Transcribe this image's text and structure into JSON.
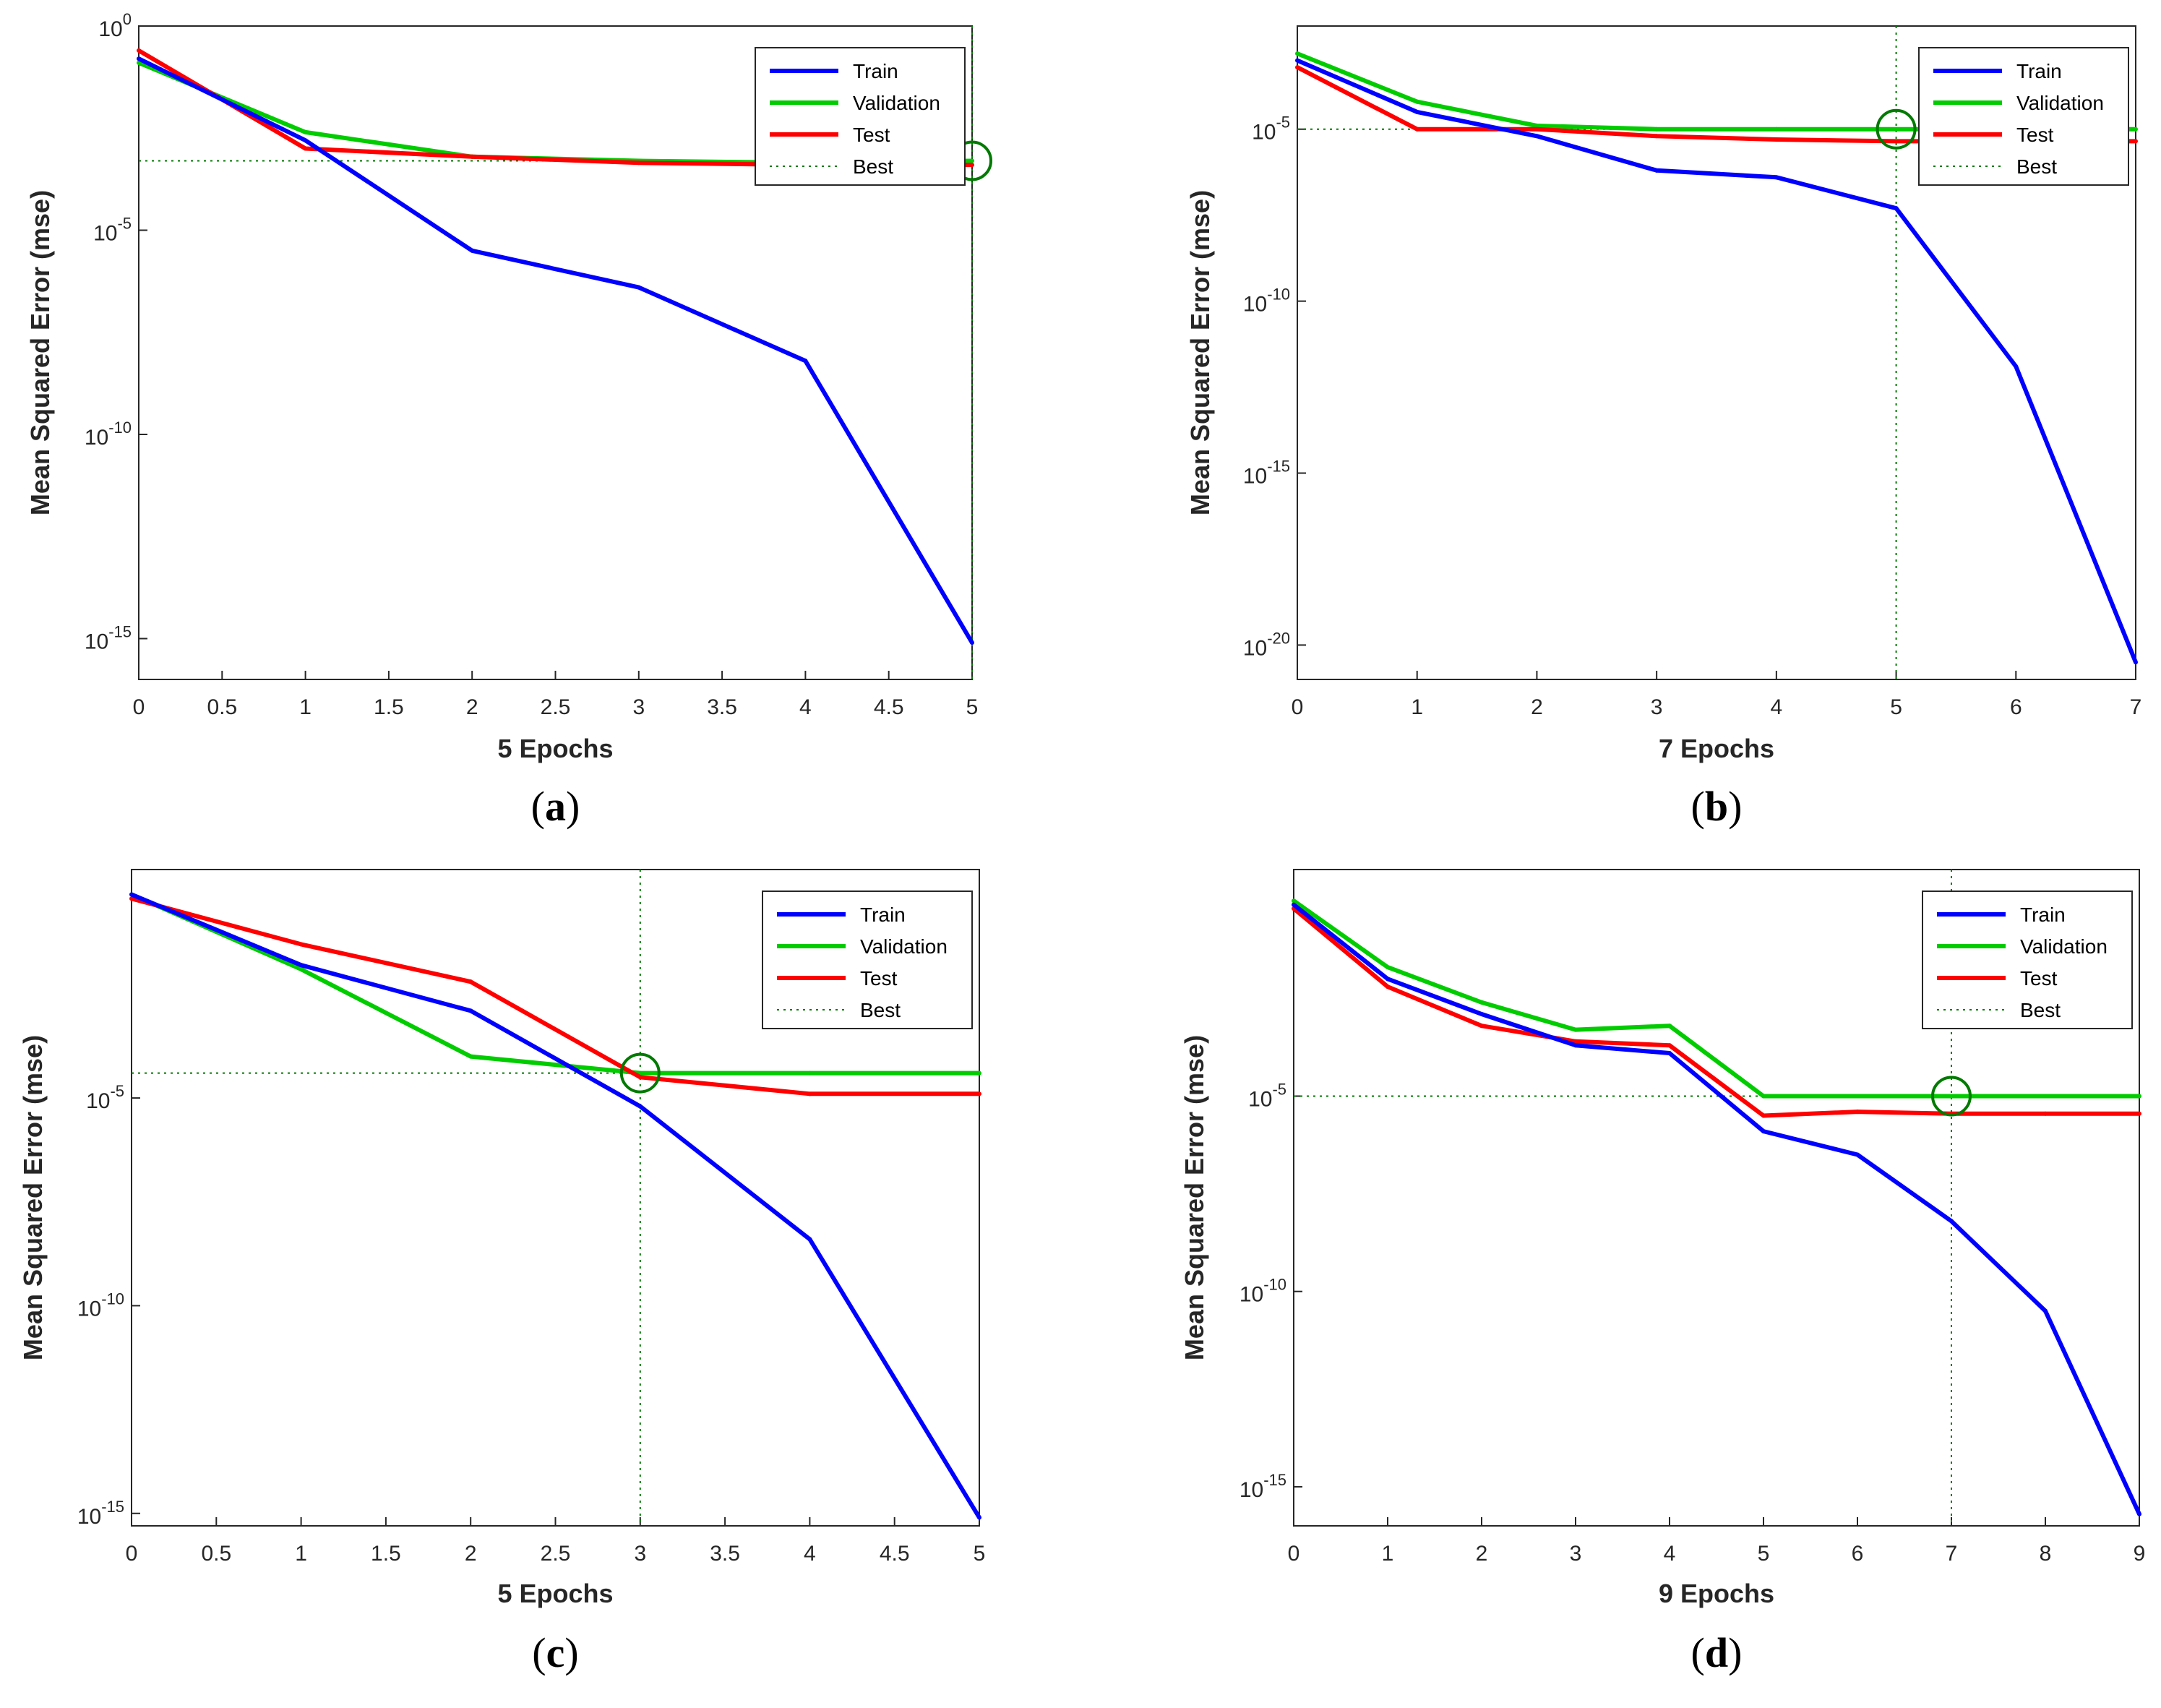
{
  "chart_data": [
    {
      "type": "line",
      "caption": "(a)",
      "caption_parts": [
        "(",
        "a",
        ")"
      ],
      "xlabel": "5 Epochs",
      "ylabel": "Mean Squared Error  (mse)",
      "x_range": [
        0,
        5
      ],
      "y_range_log10": [
        -16,
        0
      ],
      "x_ticks": [
        0,
        0.5,
        1,
        1.5,
        2,
        2.5,
        3,
        3.5,
        4,
        4.5,
        5
      ],
      "x_tick_labels": [
        "0",
        "0.5",
        "1",
        "1.5",
        "2",
        "2.5",
        "3",
        "3.5",
        "4",
        "4.5",
        "5"
      ],
      "y_ticks_log10": [
        0,
        -5,
        -10,
        -15
      ],
      "y_tick_bases": [
        "10",
        "10",
        "10",
        "10"
      ],
      "y_tick_exponents": [
        "0",
        "-5",
        "-10",
        "-15"
      ],
      "legend_position": "top-right",
      "best": {
        "epoch": 5,
        "log10_mse": -3.3
      },
      "series": [
        {
          "name": "Train",
          "color": "#0000ff",
          "x": [
            0,
            1,
            2,
            3,
            4,
            5
          ],
          "log10_mse": [
            -0.8,
            -2.8,
            -5.5,
            -6.4,
            -8.2,
            -15.1
          ]
        },
        {
          "name": "Validation",
          "color": "#00cc00",
          "x": [
            0,
            1,
            2,
            3,
            4,
            5
          ],
          "log10_mse": [
            -0.9,
            -2.6,
            -3.2,
            -3.3,
            -3.35,
            -3.3
          ]
        },
        {
          "name": "Test",
          "color": "#ff0000",
          "x": [
            0,
            1,
            2,
            3,
            4,
            5
          ],
          "log10_mse": [
            -0.6,
            -3.0,
            -3.2,
            -3.35,
            -3.4,
            -3.4
          ]
        }
      ],
      "legend_entries": [
        "Train",
        "Validation",
        "Test",
        "Best"
      ]
    },
    {
      "type": "line",
      "caption": "(b)",
      "caption_parts": [
        "(",
        "b",
        ")"
      ],
      "xlabel": "7 Epochs",
      "ylabel": "Mean Squared Error  (mse)",
      "x_range": [
        0,
        7
      ],
      "y_range_log10": [
        -21,
        -2
      ],
      "x_ticks": [
        0,
        1,
        2,
        3,
        4,
        5,
        6,
        7
      ],
      "x_tick_labels": [
        "0",
        "1",
        "2",
        "3",
        "4",
        "5",
        "6",
        "7"
      ],
      "y_ticks_log10": [
        -5,
        -10,
        -15,
        -20
      ],
      "y_tick_bases": [
        "10",
        "10",
        "10",
        "10"
      ],
      "y_tick_exponents": [
        "-5",
        "-10",
        "-15",
        "-20"
      ],
      "legend_position": "top-right",
      "best": {
        "epoch": 5,
        "log10_mse": -5.0
      },
      "series": [
        {
          "name": "Train",
          "color": "#0000ff",
          "x": [
            0,
            1,
            2,
            3,
            4,
            5,
            6,
            7
          ],
          "log10_mse": [
            -3.0,
            -4.5,
            -5.2,
            -6.2,
            -6.4,
            -7.3,
            -11.9,
            -20.5
          ]
        },
        {
          "name": "Validation",
          "color": "#00cc00",
          "x": [
            0,
            1,
            2,
            3,
            4,
            5,
            6,
            7
          ],
          "log10_mse": [
            -2.8,
            -4.2,
            -4.9,
            -5.0,
            -5.0,
            -5.0,
            -5.0,
            -5.0
          ]
        },
        {
          "name": "Test",
          "color": "#ff0000",
          "x": [
            0,
            1,
            2,
            3,
            4,
            5,
            6,
            7
          ],
          "log10_mse": [
            -3.2,
            -5.0,
            -5.0,
            -5.2,
            -5.3,
            -5.35,
            -5.35,
            -5.35
          ]
        }
      ],
      "legend_entries": [
        "Train",
        "Validation",
        "Test",
        "Best"
      ]
    },
    {
      "type": "line",
      "caption": "(c)",
      "caption_parts": [
        "(",
        "c",
        ")"
      ],
      "xlabel": "5 Epochs",
      "ylabel": "Mean Squared Error  (mse)",
      "x_range": [
        0,
        5
      ],
      "y_range_log10": [
        -15.3,
        0.5
      ],
      "x_ticks": [
        0,
        0.5,
        1,
        1.5,
        2,
        2.5,
        3,
        3.5,
        4,
        4.5,
        5
      ],
      "x_tick_labels": [
        "0",
        "0.5",
        "1",
        "1.5",
        "2",
        "2.5",
        "3",
        "3.5",
        "4",
        "4.5",
        "5"
      ],
      "y_ticks_log10": [
        -5,
        -10,
        -15
      ],
      "y_tick_bases": [
        "10",
        "10",
        "10"
      ],
      "y_tick_exponents": [
        "-5",
        "-10",
        "-15"
      ],
      "legend_position": "top-right",
      "best": {
        "epoch": 3,
        "log10_mse": -4.4
      },
      "series": [
        {
          "name": "Train",
          "color": "#0000ff",
          "x": [
            0,
            1,
            2,
            3,
            4,
            5
          ],
          "log10_mse": [
            -0.1,
            -1.8,
            -2.9,
            -5.2,
            -8.4,
            -15.1
          ]
        },
        {
          "name": "Validation",
          "color": "#00cc00",
          "x": [
            0,
            1,
            2,
            3,
            4,
            5
          ],
          "log10_mse": [
            -0.1,
            -1.9,
            -4.0,
            -4.4,
            -4.4,
            -4.4
          ]
        },
        {
          "name": "Test",
          "color": "#ff0000",
          "x": [
            0,
            1,
            2,
            3,
            4,
            5
          ],
          "log10_mse": [
            -0.2,
            -1.3,
            -2.2,
            -4.5,
            -4.9,
            -4.9
          ]
        }
      ],
      "legend_entries": [
        "Train",
        "Validation",
        "Test",
        "Best"
      ]
    },
    {
      "type": "line",
      "caption": "(d)",
      "caption_parts": [
        "(",
        "d",
        ")"
      ],
      "xlabel": "9 Epochs",
      "ylabel": "Mean Squared Error  (mse)",
      "x_range": [
        0,
        9
      ],
      "y_range_log10": [
        -16,
        0.8
      ],
      "x_ticks": [
        0,
        1,
        2,
        3,
        4,
        5,
        6,
        7,
        8,
        9
      ],
      "x_tick_labels": [
        "0",
        "1",
        "2",
        "3",
        "4",
        "5",
        "6",
        "7",
        "8",
        "9"
      ],
      "y_ticks_log10": [
        -5,
        -10,
        -15
      ],
      "y_tick_bases": [
        "10",
        "10",
        "10"
      ],
      "y_tick_exponents": [
        "-5",
        "-10",
        "-15"
      ],
      "legend_position": "top-right",
      "best": {
        "epoch": 7,
        "log10_mse": -5.0
      },
      "series": [
        {
          "name": "Train",
          "color": "#0000ff",
          "x": [
            0,
            1,
            2,
            3,
            4,
            5,
            6,
            7,
            8,
            9
          ],
          "log10_mse": [
            -0.1,
            -2.0,
            -2.9,
            -3.7,
            -3.9,
            -5.9,
            -6.5,
            -8.2,
            -10.5,
            -15.7
          ]
        },
        {
          "name": "Validation",
          "color": "#00cc00",
          "x": [
            0,
            1,
            2,
            3,
            4,
            5,
            6,
            7,
            8,
            9
          ],
          "log10_mse": [
            0.0,
            -1.7,
            -2.6,
            -3.3,
            -3.2,
            -5.0,
            -5.0,
            -5.0,
            -5.0,
            -5.0
          ]
        },
        {
          "name": "Test",
          "color": "#ff0000",
          "x": [
            0,
            1,
            2,
            3,
            4,
            5,
            6,
            7,
            8,
            9
          ],
          "log10_mse": [
            -0.2,
            -2.2,
            -3.2,
            -3.6,
            -3.7,
            -5.5,
            -5.4,
            -5.45,
            -5.45,
            -5.45
          ]
        }
      ],
      "legend_entries": [
        "Train",
        "Validation",
        "Test",
        "Best"
      ]
    }
  ]
}
